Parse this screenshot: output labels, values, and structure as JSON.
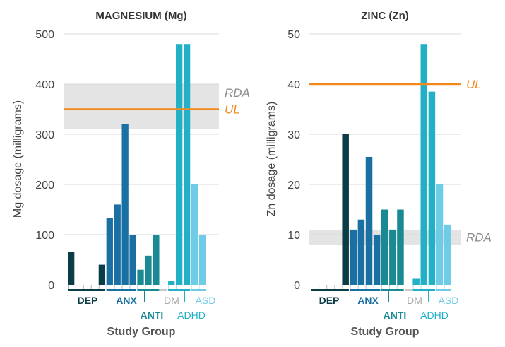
{
  "colors": {
    "DEP": "#0b3d47",
    "ANX": "#1a6fa3",
    "ANTI": "#198a93",
    "DM": "#c8c8c8",
    "ADHD": "#21b0c6",
    "ASD": "#6fcbe6",
    "UL": "#f28a1b",
    "RDA_band": "#e4e4e4",
    "RDA_text": "#8c8c8c",
    "grid": "#d9d9d9",
    "text": "#444444"
  },
  "chart_data": [
    {
      "type": "bar",
      "title": "MAGNESIUM (Mg)",
      "xlabel": "Study Group",
      "ylabel": "Mg dosage (milligrams)",
      "ylim": [
        0,
        500
      ],
      "yticks": [
        "0",
        "100",
        "200",
        "300",
        "400",
        "500"
      ],
      "grid": true,
      "groups": [
        {
          "name": "DEP",
          "values": [
            65,
            0,
            0,
            0,
            40
          ]
        },
        {
          "name": "ANX",
          "values": [
            133,
            160,
            320,
            100
          ]
        },
        {
          "name": "ANTI",
          "values": [
            30,
            58,
            100
          ]
        },
        {
          "name": "DM",
          "values": [
            0
          ]
        },
        {
          "name": "ADHD",
          "values": [
            8,
            480,
            480
          ]
        },
        {
          "name": "ASD",
          "values": [
            200,
            100
          ]
        }
      ],
      "reference_lines": [
        {
          "label": "UL",
          "value": 350
        }
      ],
      "reference_bands": [
        {
          "label": "RDA",
          "from": 310,
          "to": 400
        }
      ]
    },
    {
      "type": "bar",
      "title": "ZINC (Zn)",
      "xlabel": "Study Group",
      "ylabel": "Zn dosage (milligrams)",
      "ylim": [
        0,
        50
      ],
      "yticks": [
        "0",
        "10",
        "20",
        "30",
        "40",
        "50"
      ],
      "grid": true,
      "groups": [
        {
          "name": "DEP",
          "values": [
            0,
            0,
            0,
            0,
            30
          ]
        },
        {
          "name": "ANX",
          "values": [
            11,
            13,
            25.5,
            10
          ]
        },
        {
          "name": "ANTI",
          "values": [
            15,
            11,
            15
          ]
        },
        {
          "name": "DM",
          "values": [
            0
          ]
        },
        {
          "name": "ADHD",
          "values": [
            1.2,
            48,
            38.5
          ]
        },
        {
          "name": "ASD",
          "values": [
            20,
            12
          ]
        }
      ],
      "reference_lines": [
        {
          "label": "UL",
          "value": 40
        }
      ],
      "reference_bands": [
        {
          "label": "RDA",
          "from": 8,
          "to": 11
        }
      ]
    }
  ]
}
